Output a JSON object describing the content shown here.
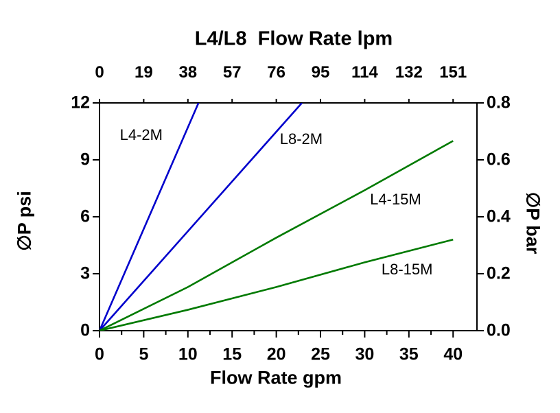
{
  "chart_data": {
    "type": "line",
    "title": "L4/L8  Flow Rate lpm",
    "x_bottom": {
      "label": "Flow Rate gpm",
      "ticks": [
        0,
        5,
        10,
        15,
        20,
        25,
        30,
        35,
        40
      ],
      "minor_tick_step": 2.5,
      "lim": [
        0,
        42.7
      ]
    },
    "x_top": {
      "label": "L4/L8  Flow Rate lpm",
      "unit": "lpm",
      "ticks": [
        0,
        19,
        38,
        57,
        76,
        95,
        114,
        132,
        151
      ]
    },
    "y_left": {
      "label": "∅P psi",
      "ticks": [
        0,
        3,
        6,
        9,
        12
      ],
      "lim": [
        0,
        12
      ]
    },
    "y_right": {
      "label": "∅P bar",
      "ticks": [
        "0.0",
        "0.2",
        "0.4",
        "0.6",
        "0.8"
      ],
      "lim": [
        0,
        0.8
      ]
    },
    "grid": false,
    "legend": "inline-labels",
    "series": [
      {
        "name": "L4-2M",
        "color": "#0000CC",
        "points_gpm_psi": [
          [
            0,
            0
          ],
          [
            11.2,
            12
          ]
        ],
        "label_pos_gpm_psi": [
          2.3,
          10.3
        ]
      },
      {
        "name": "L8-2M",
        "color": "#0000CC",
        "points_gpm_psi": [
          [
            0,
            0
          ],
          [
            22.9,
            12
          ]
        ],
        "label_pos_gpm_psi": [
          20.4,
          10.1
        ]
      },
      {
        "name": "L4-15M",
        "color": "#007A00",
        "points_gpm_psi": [
          [
            0,
            0
          ],
          [
            10,
            2.3
          ],
          [
            20,
            4.9
          ],
          [
            30,
            7.4
          ],
          [
            40,
            10
          ]
        ],
        "label_pos_gpm_psi": [
          30.6,
          6.9
        ]
      },
      {
        "name": "L8-15M",
        "color": "#007A00",
        "points_gpm_psi": [
          [
            0,
            0
          ],
          [
            10,
            1.1
          ],
          [
            20,
            2.3
          ],
          [
            30,
            3.6
          ],
          [
            40,
            4.8
          ]
        ],
        "label_pos_gpm_psi": [
          31.9,
          3.2
        ]
      }
    ]
  },
  "colors": {
    "background": "#ffffff",
    "axis": "#000000",
    "text": "#000000",
    "series_2m": "#0000CC",
    "series_15m": "#007A00"
  }
}
